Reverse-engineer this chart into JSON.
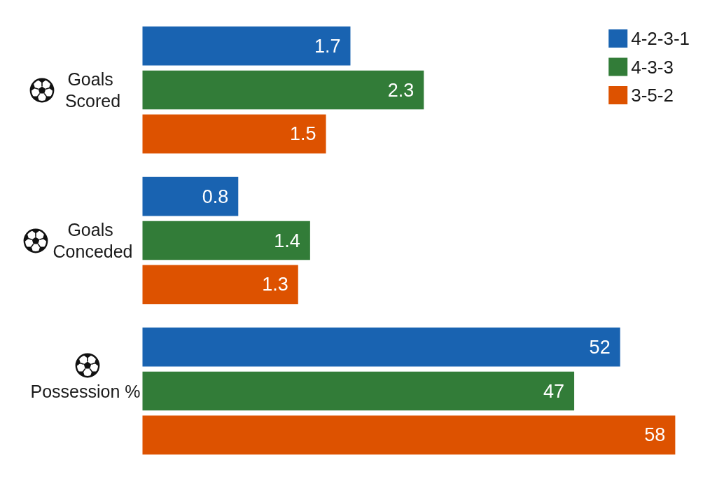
{
  "chart_data": [
    {
      "type": "bar",
      "orientation": "horizontal",
      "categories": [
        "Goals Scored"
      ],
      "series": [
        {
          "name": "4-2-3-1",
          "color": "#1963b1",
          "values": [
            1.7
          ]
        },
        {
          "name": "4-3-3",
          "color": "#327c38",
          "values": [
            2.3
          ]
        },
        {
          "name": "3-5-2",
          "color": "#dd5200",
          "values": [
            1.5
          ]
        }
      ],
      "data_labels": true,
      "legend": "top right",
      "tick_labels": "y"
    },
    {
      "type": "bar",
      "orientation": "horizontal",
      "categories": [
        "Goals Conceded"
      ],
      "series": [
        {
          "color": "#1963b1",
          "values": [
            0.8
          ]
        },
        {
          "color": "#327c38",
          "values": [
            1.4
          ]
        },
        {
          "color": "#dd5200",
          "values": [
            1.3
          ]
        }
      ],
      "data_labels": true,
      "tick_labels": "y"
    },
    {
      "type": "bar",
      "orientation": "horizontal",
      "categories": [
        "Possession %"
      ],
      "series": [
        {
          "color": "#1963b1",
          "values": [
            52
          ]
        },
        {
          "color": "#327c38",
          "values": [
            47
          ]
        },
        {
          "color": "#dd5200",
          "values": [
            58
          ]
        }
      ],
      "data_labels": true,
      "tick_labels": "y"
    }
  ]
}
